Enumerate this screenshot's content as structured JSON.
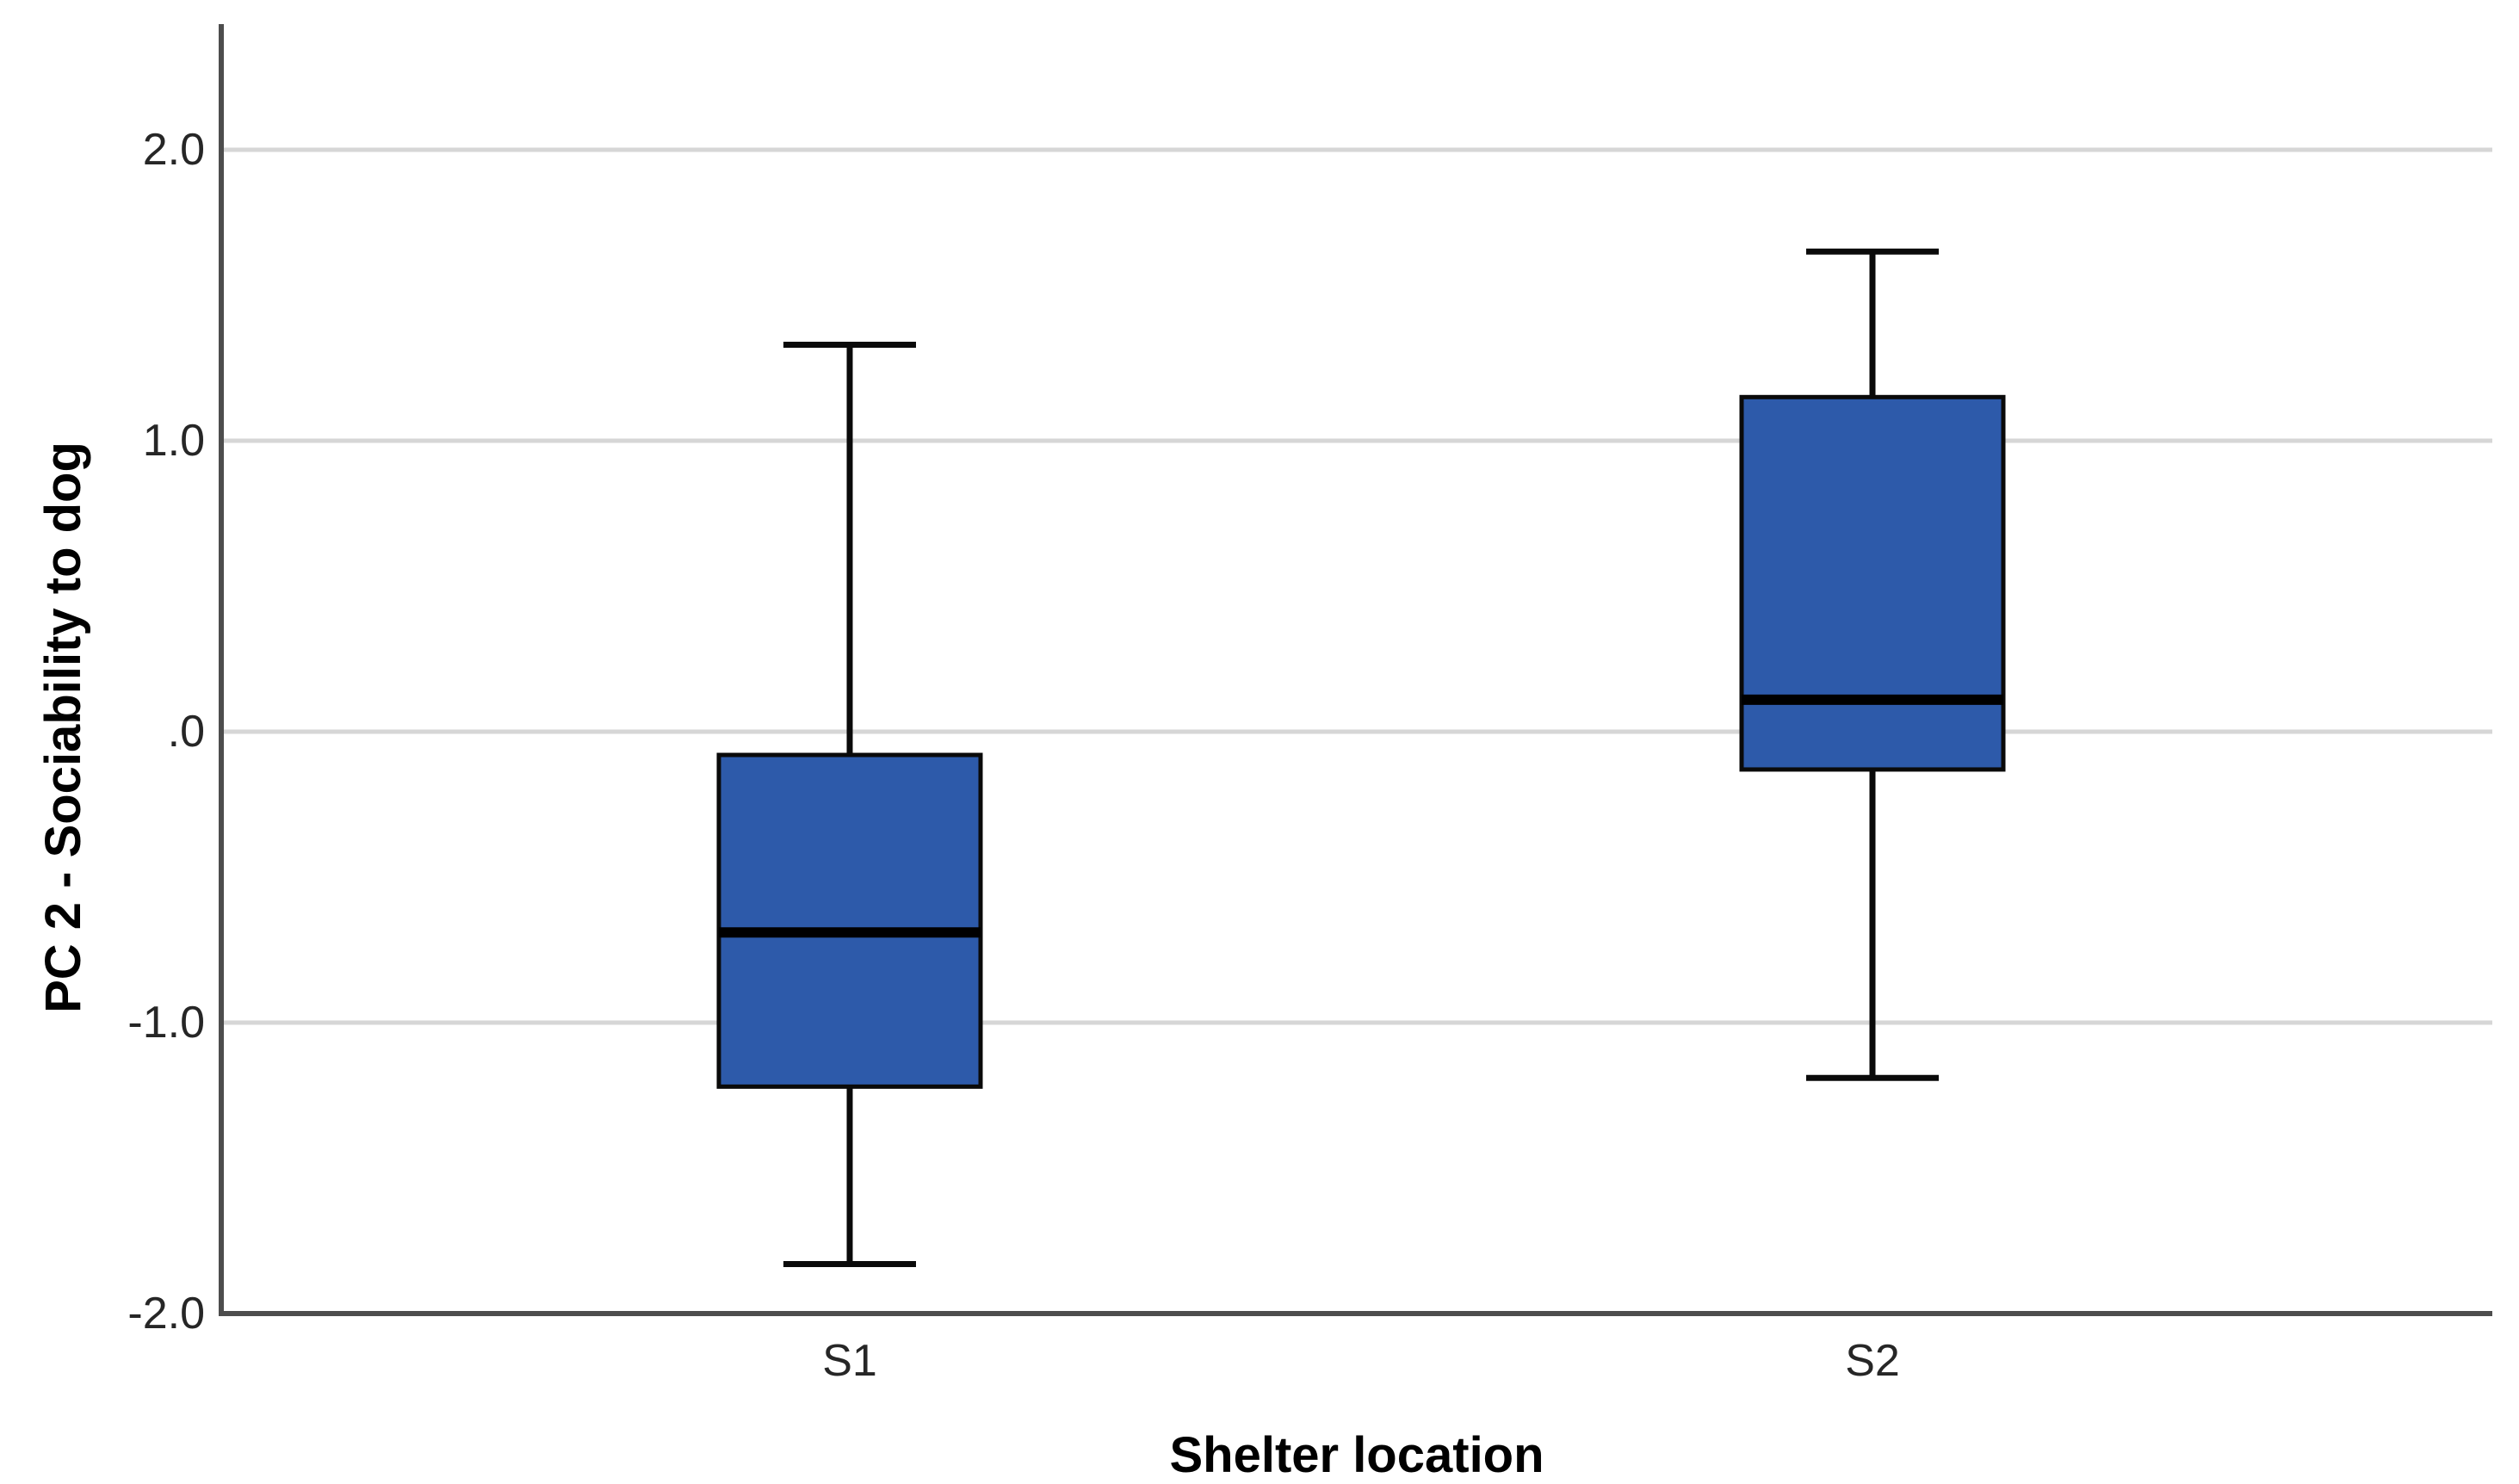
{
  "chart_data": {
    "type": "boxplot",
    "title": "",
    "xlabel": "Shelter location",
    "ylabel": "PC 2 - Sociability to dog",
    "categories": [
      "S1",
      "S2"
    ],
    "series": [
      {
        "category": "S1",
        "whisker_low": -1.83,
        "q1": -1.22,
        "median": -0.69,
        "q3": -0.08,
        "whisker_high": 1.33
      },
      {
        "category": "S2",
        "whisker_low": -1.19,
        "q1": -0.13,
        "median": 0.11,
        "q3": 1.15,
        "whisker_high": 1.65
      }
    ],
    "y_ticks": [
      {
        "value": 2.0,
        "label": "2.0"
      },
      {
        "value": 1.0,
        "label": "1.0"
      },
      {
        "value": 0.0,
        "label": ".0"
      },
      {
        "value": -1.0,
        "label": "-1.0"
      },
      {
        "value": -2.0,
        "label": "-2.0"
      }
    ],
    "ylim": [
      -2.0,
      2.43
    ],
    "grid": "horizontal",
    "legend": "none",
    "colors": {
      "box_fill": "#2d5aaa",
      "box_border": "#0a0a0a",
      "median": "#000000",
      "whisker": "#0a0a0a",
      "gridline": "#d6d6d6",
      "axis": "#4d4d4d",
      "tick_label": "#262626",
      "axis_title": "#000000"
    }
  }
}
